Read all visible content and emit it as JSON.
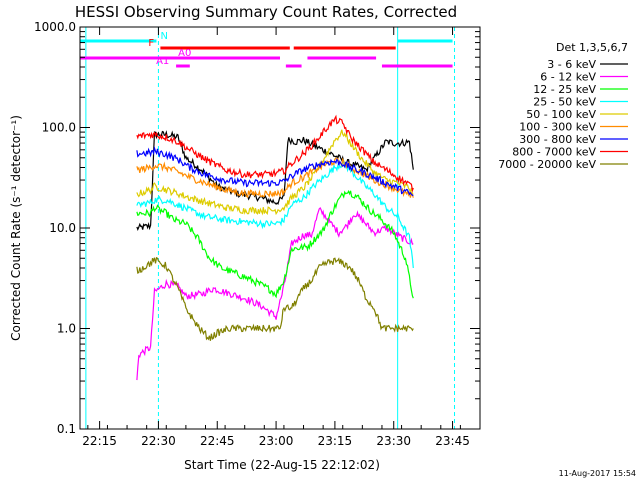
{
  "chart_data": {
    "type": "line",
    "title": "HESSI Observing Summary Count Rates, Corrected",
    "xlabel": "Start Time (22-Aug-15 22:12:02)",
    "ylabel": "Corrected Count Rate (s⁻¹ detector⁻¹)",
    "x_unit": "minutes after 22:12:02",
    "xlim": [
      -2,
      100
    ],
    "ylim": [
      0.1,
      1000
    ],
    "yscale": "log",
    "x_ticks": [
      "22:15",
      "22:30",
      "22:45",
      "23:00",
      "23:15",
      "23:30",
      "23:45"
    ],
    "x_tick_values": [
      3,
      18,
      33,
      48,
      63,
      78,
      93
    ],
    "y_ticks": [
      "0.1",
      "1.0",
      "10.0",
      "100.0",
      "1000.0"
    ],
    "y_tick_values": [
      0.1,
      1,
      10,
      100,
      1000
    ],
    "legend_title": "Det 1,3,5,6,7",
    "legend_position": "right",
    "timestamp": "11-Aug-2017 15:54",
    "series": [
      {
        "name": "3 - 6 keV",
        "color": "#000000",
        "x": [
          12.5,
          13,
          16,
          17,
          20,
          23,
          25,
          29,
          33,
          38,
          44,
          48,
          50,
          51,
          52,
          53,
          55,
          58,
          62,
          66,
          71,
          76,
          78,
          80,
          82,
          83
        ],
        "y": [
          10,
          10,
          10.5,
          85,
          85,
          80,
          50,
          38,
          26,
          22,
          20,
          18,
          20,
          75,
          75,
          72,
          75,
          65,
          55,
          45,
          38,
          72,
          70,
          70,
          72,
          38
        ]
      },
      {
        "name": "6 - 12 keV",
        "color": "#ff00ff",
        "x": [
          12.5,
          13,
          16,
          17,
          20,
          23,
          25,
          29,
          32,
          35,
          40,
          44,
          47,
          48,
          50,
          52,
          55,
          57,
          59,
          60,
          62,
          64,
          66,
          68,
          70,
          73,
          76,
          80,
          83
        ],
        "y": [
          0.3,
          0.55,
          0.65,
          2.3,
          2.8,
          2.6,
          2.1,
          2.2,
          2.5,
          2.3,
          2,
          1.7,
          1.4,
          1.3,
          2.6,
          7,
          8.5,
          8.5,
          15,
          14,
          11,
          9,
          10.5,
          14,
          12,
          9,
          10,
          8,
          7
        ]
      },
      {
        "name": "12 - 25 keV",
        "color": "#00ff00",
        "x": [
          12.5,
          13,
          16,
          17,
          20,
          22,
          25,
          28,
          31,
          34,
          38,
          42,
          46,
          48,
          50,
          52,
          56,
          60,
          62,
          64,
          66,
          69,
          72,
          75,
          78,
          81,
          83
        ],
        "y": [
          14,
          14,
          14,
          16,
          14,
          12,
          11,
          8,
          5,
          4,
          3.5,
          3,
          2.5,
          2.2,
          3,
          6.2,
          6.5,
          9.5,
          14,
          19,
          24,
          20,
          15,
          12,
          9,
          5,
          2
        ]
      },
      {
        "name": "25 - 50 keV",
        "color": "#00ffff",
        "x": [
          12.5,
          13,
          16,
          17,
          20,
          23,
          26,
          30,
          35,
          40,
          45,
          48,
          50,
          52,
          55,
          58,
          61,
          63,
          65,
          67,
          70,
          73,
          76,
          79,
          82,
          83
        ],
        "y": [
          16,
          17,
          18,
          19,
          19,
          17,
          15,
          13,
          12,
          11.5,
          11,
          11,
          12,
          17,
          20,
          27,
          34,
          40,
          44,
          38,
          28,
          22,
          16,
          13,
          8,
          4
        ]
      },
      {
        "name": "50 - 100 keV",
        "color": "#ddcc00",
        "x": [
          12.5,
          13,
          16,
          17,
          20,
          23,
          26,
          30,
          35,
          40,
          45,
          48,
          50,
          52,
          55,
          58,
          61,
          63,
          65,
          67,
          70,
          73,
          76,
          79,
          82,
          83
        ],
        "y": [
          22,
          22,
          24,
          26,
          24,
          22,
          20,
          18,
          16,
          15,
          15,
          15,
          16,
          20,
          25,
          35,
          55,
          75,
          90,
          70,
          48,
          36,
          30,
          28,
          25,
          22
        ]
      },
      {
        "name": "100 - 300 keV",
        "color": "#ff8c00",
        "x": [
          12.5,
          13,
          16,
          17,
          20,
          23,
          26,
          30,
          35,
          40,
          45,
          48,
          50,
          52,
          55,
          58,
          61,
          63,
          65,
          67,
          70,
          73,
          76,
          79,
          82,
          83
        ],
        "y": [
          38,
          38,
          40,
          42,
          40,
          36,
          32,
          28,
          24,
          22,
          22,
          22,
          23,
          28,
          32,
          38,
          44,
          46,
          45,
          40,
          35,
          30,
          27,
          24,
          21,
          20
        ]
      },
      {
        "name": "300 - 800 keV",
        "color": "#0000ff",
        "x": [
          12.5,
          13,
          16,
          17,
          20,
          23,
          26,
          30,
          35,
          40,
          45,
          48,
          50,
          52,
          55,
          58,
          61,
          63,
          65,
          67,
          70,
          73,
          76,
          79,
          82,
          83
        ],
        "y": [
          55,
          55,
          56,
          58,
          54,
          48,
          40,
          34,
          30,
          28,
          28,
          28,
          29,
          33,
          38,
          42,
          45,
          46,
          44,
          40,
          36,
          32,
          28,
          25,
          22,
          21
        ]
      },
      {
        "name": "800 - 7000 keV",
        "color": "#ff0000",
        "x": [
          12.5,
          13,
          16,
          17,
          20,
          23,
          26,
          30,
          35,
          40,
          45,
          48,
          50,
          52,
          55,
          58,
          61,
          63,
          65,
          67,
          70,
          73,
          76,
          79,
          82,
          83
        ],
        "y": [
          80,
          82,
          85,
          85,
          80,
          72,
          60,
          48,
          38,
          34,
          34,
          35,
          37,
          44,
          55,
          72,
          100,
          120,
          110,
          80,
          60,
          45,
          38,
          32,
          27,
          25
        ]
      },
      {
        "name": "7000 - 20000 keV",
        "color": "#808000",
        "x": [
          12.5,
          13,
          16,
          17,
          20,
          21,
          23,
          25,
          27,
          29,
          31,
          33,
          36,
          40,
          45,
          49,
          50,
          52,
          55,
          57,
          59,
          61,
          63,
          65,
          67,
          69,
          71,
          73,
          75,
          78,
          81,
          83
        ],
        "y": [
          3.8,
          3.8,
          4.5,
          4.8,
          4.2,
          3.5,
          2.5,
          1.6,
          1.2,
          0.95,
          0.8,
          0.9,
          1,
          1,
          1,
          1,
          1.6,
          1.6,
          2.5,
          3,
          4,
          4.5,
          4.7,
          4.5,
          4,
          3,
          2,
          1.6,
          1,
          1,
          1,
          1
        ]
      }
    ],
    "attenuator_bars": [
      {
        "label": "N",
        "color": "#00ffff",
        "start": -2,
        "end": 17.5
      },
      {
        "label": "N",
        "color": "#00ffff",
        "start": 79,
        "end": 93
      },
      {
        "label": "F",
        "color": "#ff0000",
        "start": 18.5,
        "end": 51.5
      },
      {
        "label": "F",
        "color": "#ff0000",
        "start": 52.5,
        "end": 78.5
      },
      {
        "label": "A0",
        "color": "#ff00ff",
        "start": -2,
        "end": 49
      },
      {
        "label": "A0",
        "color": "#ff00ff",
        "start": 56,
        "end": 73.5
      },
      {
        "label": "A1",
        "color": "#ff00ff",
        "start": 22.5,
        "end": 26
      },
      {
        "label": "A1",
        "color": "#ff00ff",
        "start": 50.5,
        "end": 54.5
      },
      {
        "label": "A1",
        "color": "#ff00ff",
        "start": 75,
        "end": 93
      }
    ],
    "vertical_markers": [
      {
        "x": -0.5,
        "color": "#00ffff",
        "style": "solid"
      },
      {
        "x": 18,
        "color": "#00ffff",
        "style": "dashed"
      },
      {
        "x": 79,
        "color": "#00ffff",
        "style": "solid"
      },
      {
        "x": 93.5,
        "color": "#00ffff",
        "style": "dashed"
      }
    ]
  }
}
